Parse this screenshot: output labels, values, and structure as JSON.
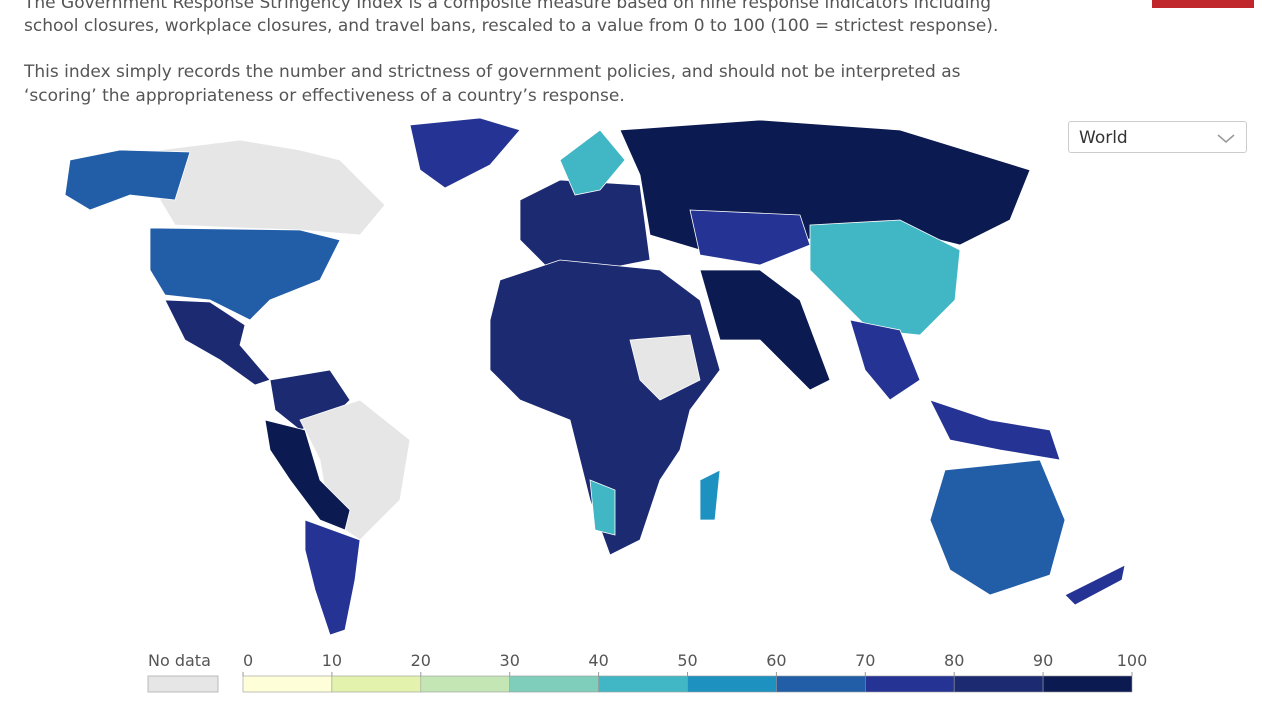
{
  "description": {
    "paragraph_1": [
      "The Government Response Stringency Index is a composite measure based on nine response indicators including",
      "school closures, workplace closures, and travel bans, rescaled to a value from 0 to 100 (100 = strictest response)."
    ],
    "paragraph_2": [
      "This index simply records the number and strictness of government policies, and should not be interpreted as",
      "‘scoring’ the appropriateness or effectiveness of a country’s response."
    ]
  },
  "region_selector": "World",
  "legend": {
    "no_data_label": "No data",
    "no_data_color": "#e6e6e6",
    "ticks": [
      0,
      10,
      20,
      30,
      40,
      50,
      60,
      70,
      80,
      90,
      100
    ],
    "colors": [
      "#fefed8",
      "#e3f3ae",
      "#c4e6b4",
      "#7fcdbb",
      "#41b6c4",
      "#1d91c0",
      "#225ea8",
      "#253494",
      "#1c2a72",
      "#0b1a50"
    ]
  }
}
